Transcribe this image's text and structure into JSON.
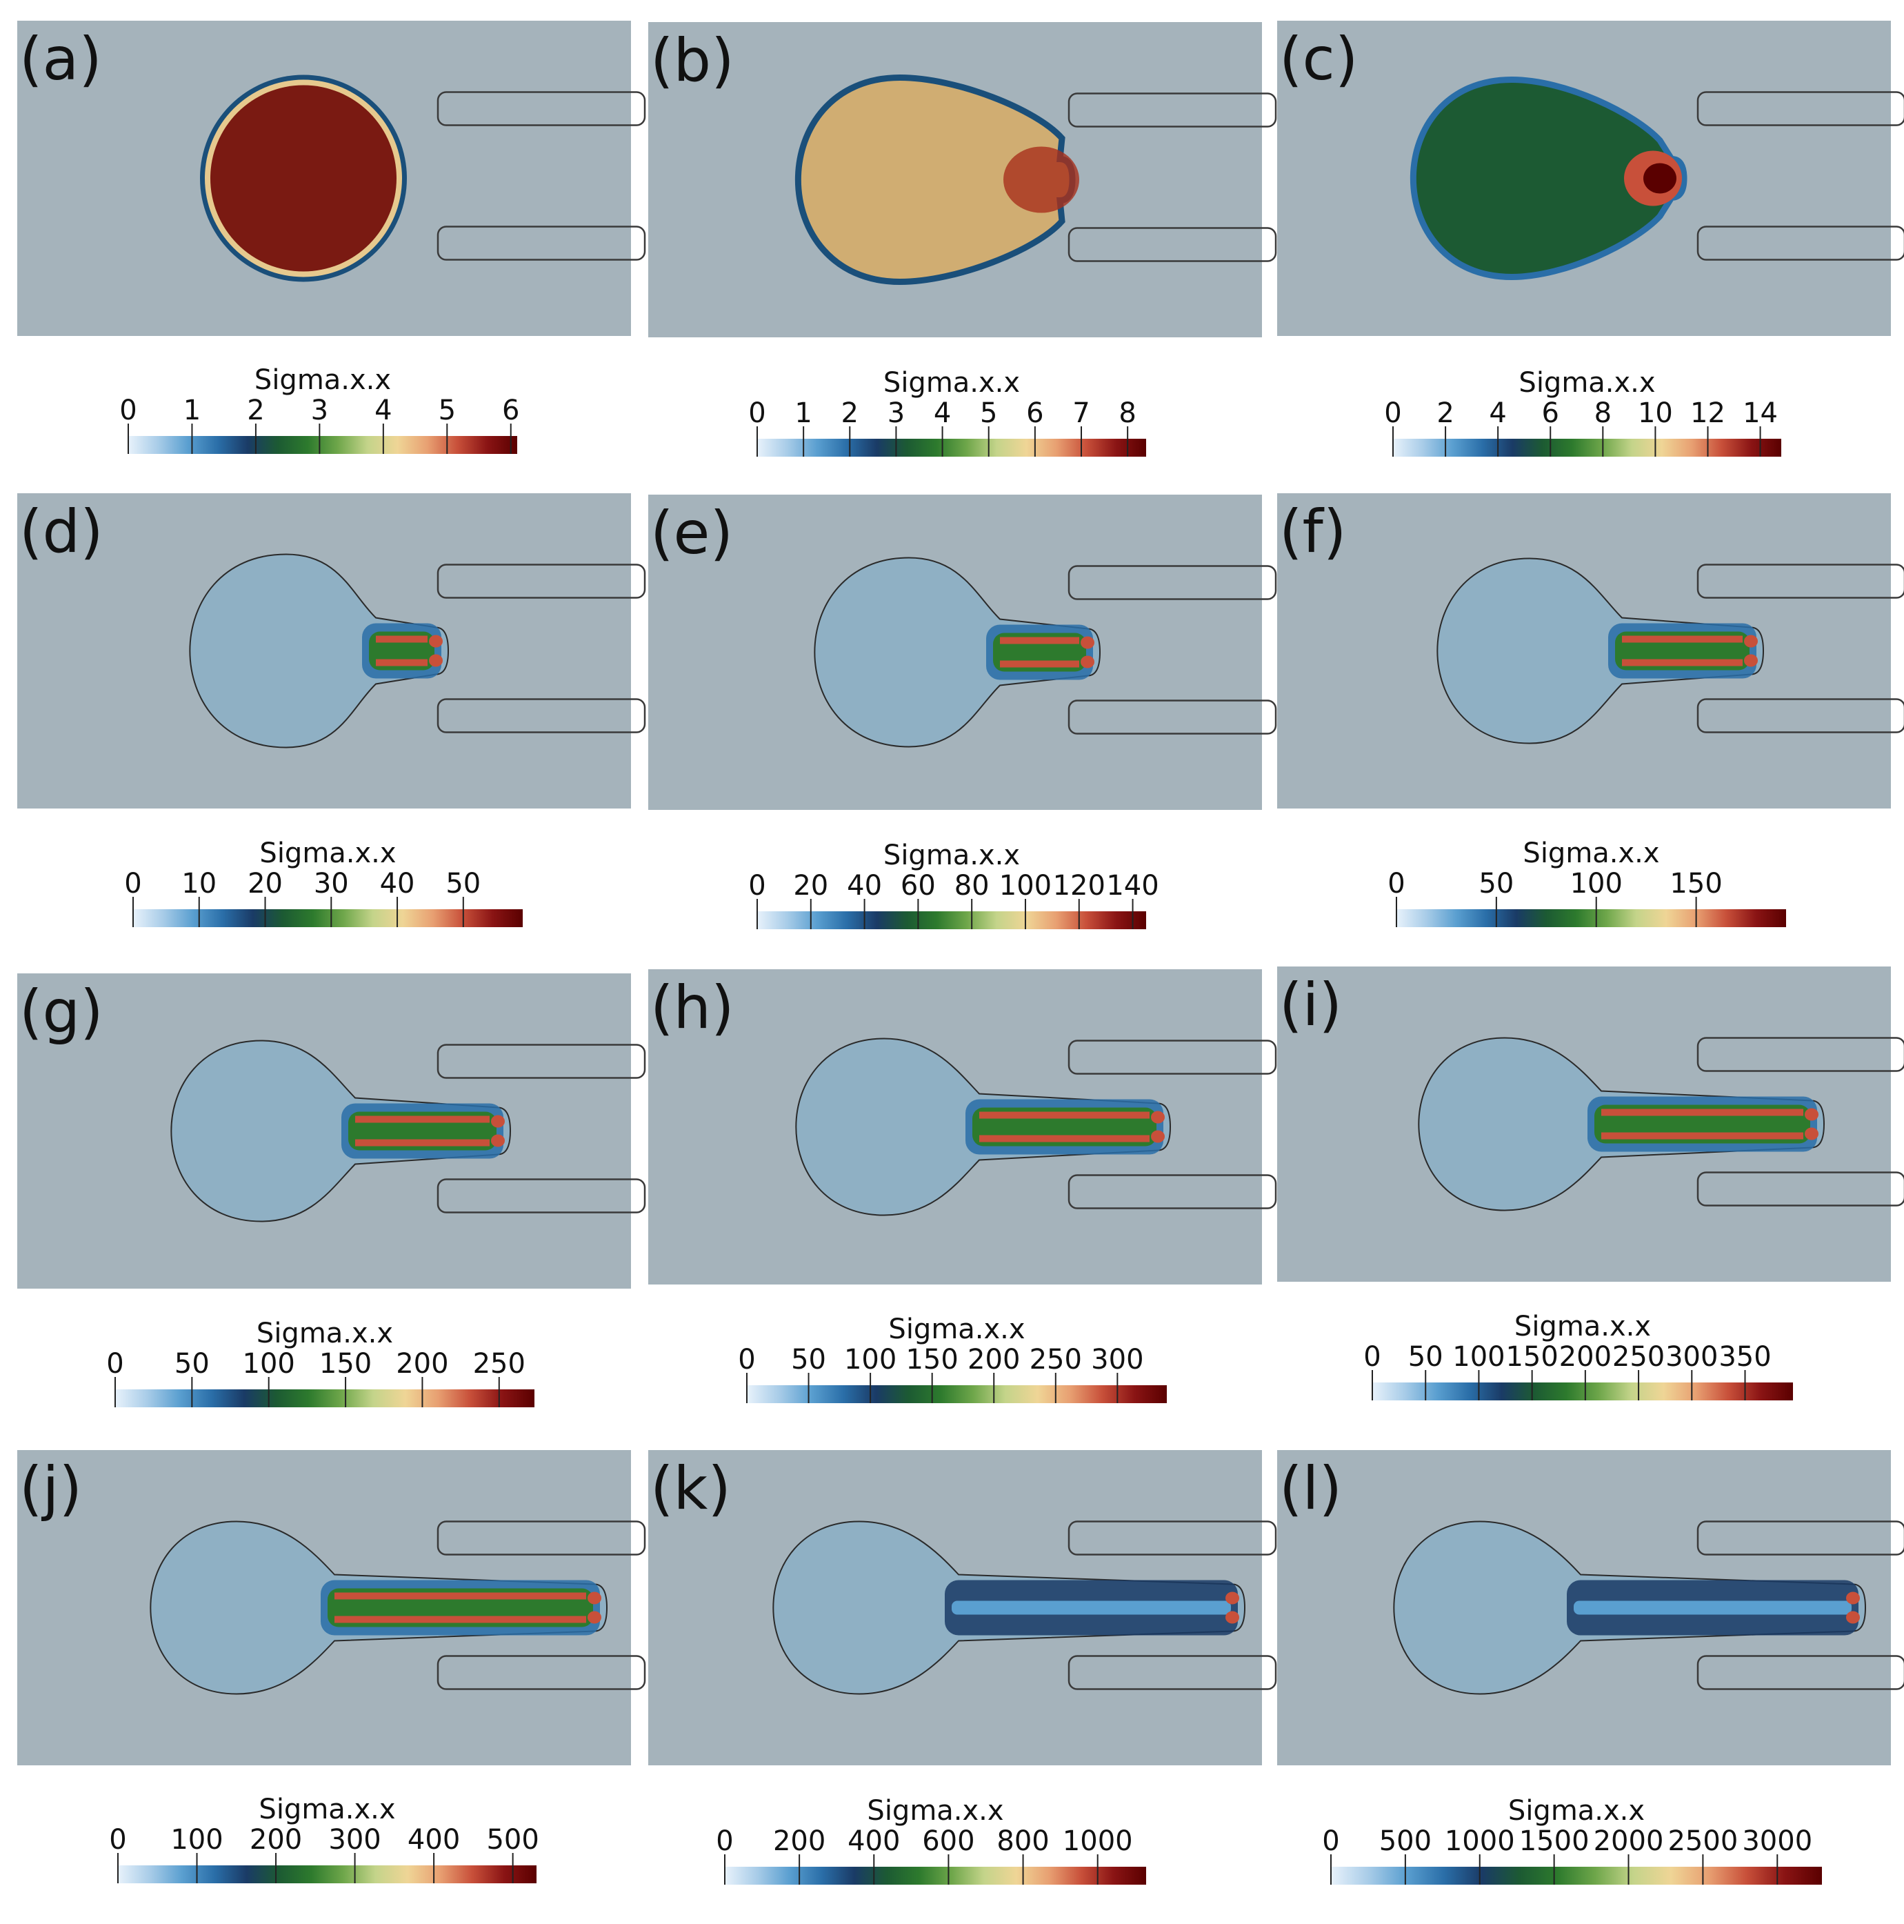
{
  "figure": {
    "colormap": [
      "#e8f2fb",
      "#a8cce8",
      "#5a9fd0",
      "#2a6ea8",
      "#1a3b66",
      "#1c5a33",
      "#2d7a2d",
      "#6ea64a",
      "#c4d48a",
      "#efd596",
      "#e8a072",
      "#c8503a",
      "#8a1414",
      "#5a0000"
    ],
    "background_color": "#a5b3bb",
    "panels": [
      {
        "label": "(a)",
        "colorbar": {
          "title": "Sigma.x.x",
          "ticks": [
            "0",
            "1",
            "2",
            "3",
            "4",
            "5",
            "6"
          ],
          "vmax": 6.1
        }
      },
      {
        "label": "(b)",
        "colorbar": {
          "title": "Sigma.x.x",
          "ticks": [
            "0",
            "1",
            "2",
            "3",
            "4",
            "5",
            "6",
            "7",
            "8"
          ],
          "vmax": 8.4
        }
      },
      {
        "label": "(c)",
        "colorbar": {
          "title": "Sigma.x.x",
          "ticks": [
            "0",
            "2",
            "4",
            "6",
            "8",
            "10",
            "12",
            "14"
          ],
          "vmax": 14.8
        }
      },
      {
        "label": "(d)",
        "colorbar": {
          "title": "Sigma.x.x",
          "ticks": [
            "0",
            "10",
            "20",
            "30",
            "40",
            "50"
          ],
          "vmax": 59
        }
      },
      {
        "label": "(e)",
        "colorbar": {
          "title": "Sigma.x.x",
          "ticks": [
            "0",
            "20",
            "40",
            "60",
            "80",
            "100",
            "120",
            "140"
          ],
          "vmax": 145
        }
      },
      {
        "label": "(f)",
        "colorbar": {
          "title": "Sigma.x.x",
          "ticks": [
            "0",
            "50",
            "100",
            "150"
          ],
          "vmax": 195
        }
      },
      {
        "label": "(g)",
        "colorbar": {
          "title": "Sigma.x.x",
          "ticks": [
            "0",
            "50",
            "100",
            "150",
            "200",
            "250"
          ],
          "vmax": 273
        }
      },
      {
        "label": "(h)",
        "colorbar": {
          "title": "Sigma.x.x",
          "ticks": [
            "0",
            "50",
            "100",
            "150",
            "200",
            "250",
            "300"
          ],
          "vmax": 340
        }
      },
      {
        "label": "(i)",
        "colorbar": {
          "title": "Sigma.x.x",
          "ticks": [
            "0",
            "50",
            "100",
            "150",
            "200",
            "250",
            "300",
            "350"
          ],
          "vmax": 395
        }
      },
      {
        "label": "(j)",
        "colorbar": {
          "title": "Sigma.x.x",
          "ticks": [
            "0",
            "100",
            "200",
            "300",
            "400",
            "500"
          ],
          "vmax": 530
        }
      },
      {
        "label": "(k)",
        "colorbar": {
          "title": "Sigma.x.x",
          "ticks": [
            "0",
            "200",
            "400",
            "600",
            "800",
            "1000"
          ],
          "vmax": 1130
        }
      },
      {
        "label": "(l)",
        "colorbar": {
          "title": "Sigma.x.x",
          "ticks": [
            "0",
            "500",
            "1000",
            "1500",
            "2000",
            "2500",
            "3000"
          ],
          "vmax": 3300
        }
      }
    ]
  }
}
